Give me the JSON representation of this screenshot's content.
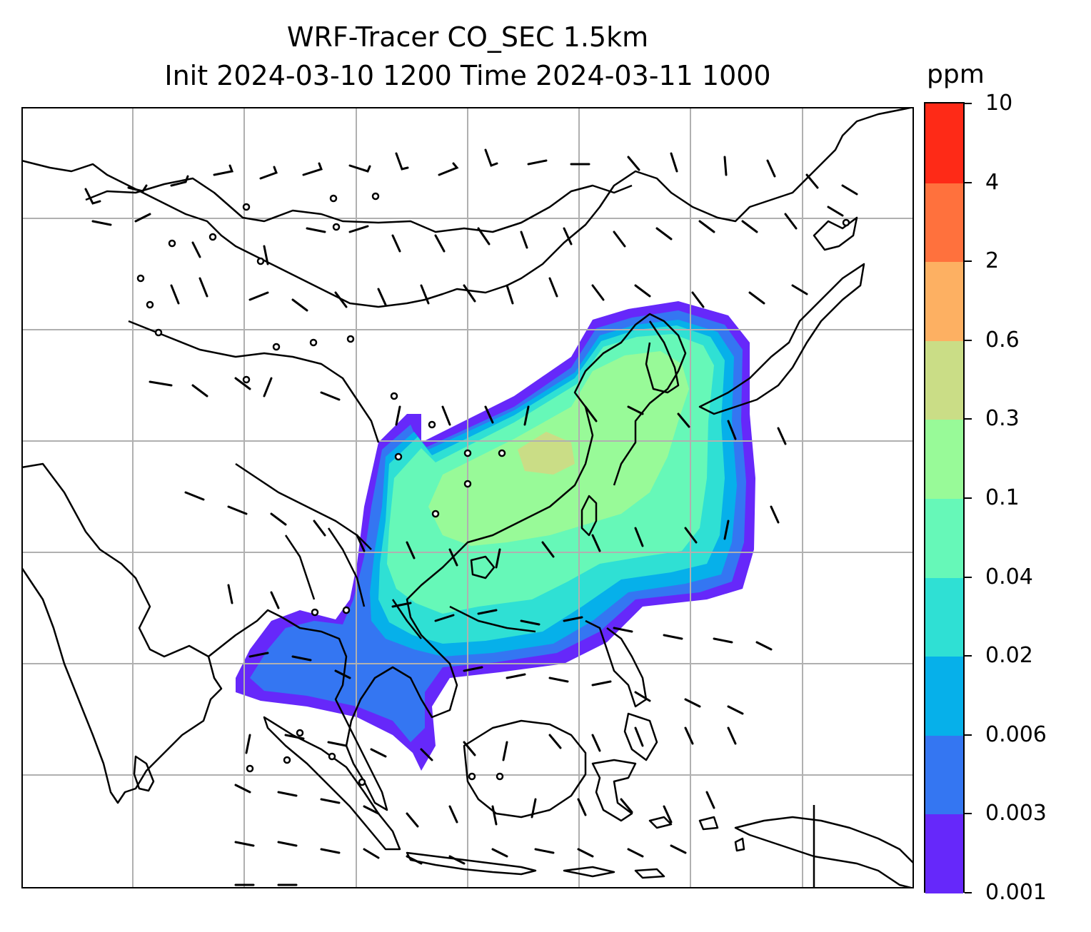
{
  "title": {
    "line1": "WRF-Tracer CO_SEC 1.5km",
    "line2": "Init 2024-03-10 1200 Time 2024-03-11 1000"
  },
  "colorbar": {
    "unit": "ppm",
    "levels": [
      "0.001",
      "0.003",
      "0.006",
      "0.02",
      "0.04",
      "0.1",
      "0.3",
      "0.6",
      "2",
      "4",
      "10"
    ],
    "colors": [
      "#6628fa",
      "#3476f2",
      "#06b0ea",
      "#2fe0d4",
      "#66f8b8",
      "#98fa98",
      "#cadd86",
      "#fdb062",
      "#ff713d",
      "#fe2a17"
    ]
  },
  "map": {
    "gridlines": true,
    "gridline_color": "#b0b0b0",
    "coastline_color": "#000000",
    "wind_barbs": true
  }
}
